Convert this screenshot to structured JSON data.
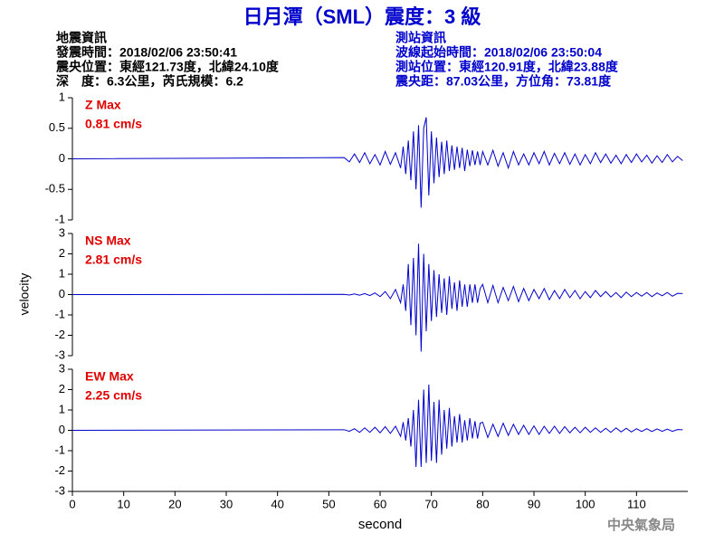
{
  "header": {
    "title": "日月潭（SML）震度：3 級",
    "left": [
      "地震資訊",
      "發震時間：2018/02/06 23:50:41",
      "震央位置：東經121.73度，北緯24.10度",
      "深　度：6.3公里，芮氏規模：6.2"
    ],
    "right": [
      "測站資訊",
      "波線起始時間：2018/02/06 23:50:04",
      "測站位置：東經120.91度，北緯23.88度",
      "震央距：87.03公里，方位角：73.81度"
    ]
  },
  "ylabel": "velocity",
  "footer": "中央氣象局",
  "chart_data": [
    {
      "type": "line",
      "annotations": [
        "Z Max",
        "0.81 cm/s"
      ],
      "annotation_color": "#e00000",
      "xlim": [
        0,
        120
      ],
      "ylim": [
        -1,
        1
      ],
      "yticks": [
        -1,
        -0.5,
        0,
        0.5,
        1
      ],
      "series": [
        {
          "color": "#0000cc",
          "x": [
            0,
            53,
            54,
            55,
            56,
            57,
            58,
            59,
            60,
            61,
            62,
            63,
            64,
            64.5,
            65,
            65.5,
            66,
            66.5,
            67,
            67.5,
            68,
            68.5,
            69,
            69.5,
            70,
            70.5,
            71,
            71.5,
            72,
            72.5,
            73,
            73.5,
            74,
            74.5,
            75,
            75.5,
            76,
            76.5,
            77,
            77.5,
            78,
            78.5,
            79,
            79.5,
            80,
            81,
            82,
            83,
            84,
            85,
            86,
            87,
            88,
            89,
            90,
            91,
            92,
            93,
            94,
            95,
            96,
            97,
            98,
            99,
            100,
            101,
            102,
            103,
            104,
            105,
            106,
            107,
            108,
            109,
            110,
            111,
            112,
            113,
            114,
            115,
            116,
            117,
            118,
            119
          ],
          "values": [
            0,
            0.02,
            -0.05,
            0.08,
            -0.06,
            0.1,
            -0.08,
            0.07,
            -0.1,
            0.12,
            -0.09,
            0.1,
            -0.15,
            0.2,
            -0.25,
            0.3,
            -0.35,
            0.45,
            -0.5,
            0.55,
            -0.8,
            0.5,
            0.68,
            -0.6,
            0.45,
            -0.4,
            0.35,
            -0.3,
            0.28,
            -0.25,
            0.3,
            -0.2,
            0.22,
            -0.18,
            0.2,
            -0.15,
            0.18,
            -0.2,
            0.15,
            -0.12,
            0.14,
            -0.1,
            0.12,
            -0.1,
            0.12,
            -0.1,
            0.14,
            -0.12,
            0.1,
            -0.15,
            0.12,
            -0.1,
            0.08,
            -0.1,
            0.1,
            -0.08,
            0.12,
            -0.1,
            0.09,
            -0.08,
            0.1,
            -0.09,
            0.08,
            -0.1,
            0.07,
            -0.08,
            0.1,
            -0.06,
            0.08,
            -0.07,
            0.06,
            -0.08,
            0.07,
            -0.06,
            0.08,
            -0.05,
            0.06,
            -0.07,
            0.05,
            -0.06,
            0.07,
            -0.05,
            0.04,
            -0.03
          ]
        }
      ]
    },
    {
      "type": "line",
      "annotations": [
        "NS Max",
        "2.81 cm/s"
      ],
      "annotation_color": "#e00000",
      "xlim": [
        0,
        120
      ],
      "ylim": [
        -3,
        3
      ],
      "yticks": [
        -3,
        -2,
        -1,
        0,
        1,
        2,
        3
      ],
      "series": [
        {
          "color": "#0000cc",
          "x": [
            0,
            53,
            54,
            55,
            56,
            57,
            58,
            59,
            60,
            61,
            62,
            63,
            64,
            64.5,
            65,
            65.5,
            66,
            66.5,
            67,
            67.5,
            68,
            68.5,
            69,
            69.5,
            70,
            70.5,
            71,
            71.5,
            72,
            72.5,
            73,
            73.5,
            74,
            74.5,
            75,
            75.5,
            76,
            76.5,
            77,
            77.5,
            78,
            78.5,
            79,
            79.5,
            80,
            81,
            82,
            83,
            84,
            85,
            86,
            87,
            88,
            89,
            90,
            91,
            92,
            93,
            94,
            95,
            96,
            97,
            98,
            99,
            100,
            101,
            102,
            103,
            104,
            105,
            106,
            107,
            108,
            109,
            110,
            111,
            112,
            113,
            114,
            115,
            116,
            117,
            118,
            119
          ],
          "values": [
            0,
            0.01,
            -0.02,
            0.03,
            -0.03,
            0.05,
            -0.05,
            0.08,
            -0.1,
            0.15,
            -0.2,
            0.25,
            -0.4,
            0.5,
            -0.8,
            1.5,
            -1.5,
            1.8,
            -2,
            2.5,
            -2.8,
            2,
            -1.8,
            1.5,
            -1.3,
            1.2,
            -1.1,
            1,
            -0.9,
            0.8,
            -1,
            0.9,
            -0.7,
            0.6,
            -0.8,
            0.7,
            -0.6,
            0.5,
            -0.6,
            0.5,
            -0.4,
            0.5,
            -0.4,
            0.3,
            0.5,
            -0.4,
            0.45,
            -0.4,
            0.35,
            -0.3,
            0.4,
            -0.35,
            0.3,
            -0.3,
            0.25,
            -0.2,
            0.3,
            -0.25,
            0.2,
            -0.2,
            0.25,
            -0.15,
            0.2,
            -0.2,
            0.15,
            -0.15,
            0.2,
            -0.1,
            0.15,
            -0.12,
            0.1,
            -0.15,
            0.12,
            -0.1,
            0.1,
            -0.08,
            0.1,
            -0.1,
            0.08,
            -0.06,
            0.1,
            -0.08,
            0.06,
            0.05
          ]
        }
      ]
    },
    {
      "type": "line",
      "annotations": [
        "EW Max",
        "2.25 cm/s"
      ],
      "annotation_color": "#e00000",
      "xlim": [
        0,
        120
      ],
      "ylim": [
        -3,
        3
      ],
      "yticks": [
        -3,
        -2,
        -1,
        0,
        1,
        2,
        3
      ],
      "xticks": [
        0,
        10,
        20,
        30,
        40,
        50,
        60,
        70,
        80,
        90,
        100,
        110
      ],
      "xlabel": "second",
      "series": [
        {
          "color": "#0000cc",
          "x": [
            0,
            53,
            54,
            55,
            56,
            57,
            58,
            59,
            60,
            61,
            62,
            63,
            64,
            64.5,
            65,
            65.5,
            66,
            66.5,
            67,
            67.5,
            68,
            68.5,
            69,
            69.5,
            70,
            70.5,
            71,
            71.5,
            72,
            72.5,
            73,
            73.5,
            74,
            74.5,
            75,
            75.5,
            76,
            76.5,
            77,
            77.5,
            78,
            78.5,
            79,
            79.5,
            80,
            81,
            82,
            83,
            84,
            85,
            86,
            87,
            88,
            89,
            90,
            91,
            92,
            93,
            94,
            95,
            96,
            97,
            98,
            99,
            100,
            101,
            102,
            103,
            104,
            105,
            106,
            107,
            108,
            109,
            110,
            111,
            112,
            113,
            114,
            115,
            116,
            117,
            118,
            119
          ],
          "values": [
            0,
            0.03,
            -0.05,
            0.08,
            -0.1,
            0.12,
            -0.1,
            0.15,
            -0.12,
            0.18,
            -0.15,
            0.2,
            -0.3,
            0.4,
            -0.5,
            0.6,
            -0.8,
            1,
            -1.8,
            1.5,
            -1.8,
            2,
            -1.6,
            2.25,
            -1.5,
            1.4,
            -1.6,
            1.5,
            -1.2,
            1,
            -0.9,
            1.1,
            -0.8,
            0.7,
            -0.6,
            0.8,
            -0.6,
            0.5,
            -0.5,
            0.6,
            -0.4,
            0.45,
            -0.4,
            0.35,
            0.4,
            -0.35,
            0.3,
            -0.3,
            0.35,
            -0.25,
            0.3,
            -0.2,
            0.25,
            -0.2,
            0.22,
            -0.2,
            0.2,
            -0.15,
            0.2,
            -0.15,
            0.18,
            -0.12,
            0.15,
            -0.12,
            0.15,
            -0.1,
            0.12,
            -0.1,
            0.1,
            -0.1,
            0.12,
            -0.08,
            0.1,
            -0.08,
            0.08,
            -0.06,
            0.08,
            -0.06,
            0.07,
            -0.05,
            0.06,
            -0.05,
            0.04,
            0.03
          ]
        }
      ]
    }
  ]
}
